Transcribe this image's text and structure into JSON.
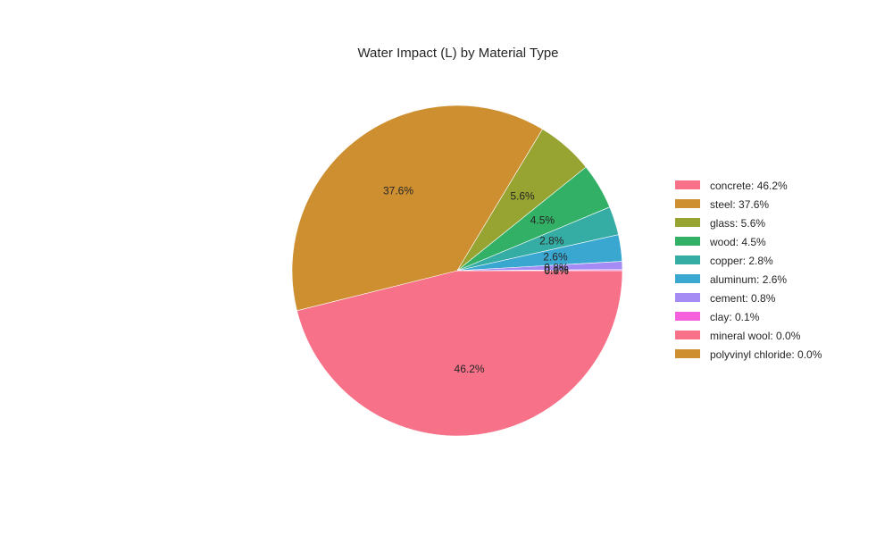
{
  "chart_data": {
    "type": "pie",
    "title": "Water Impact (L) by Material Type",
    "legend_position": "right",
    "start": "clockwise from horizontal right",
    "slices": [
      {
        "label": "concrete",
        "percent": 46.2,
        "legend": "concrete: 46.2%",
        "data_label": "46.2%",
        "color": "#f77189"
      },
      {
        "label": "steel",
        "percent": 37.6,
        "legend": "steel: 37.6%",
        "data_label": "37.6%",
        "color": "#ce8f31"
      },
      {
        "label": "glass",
        "percent": 5.6,
        "legend": "glass: 5.6%",
        "data_label": "5.6%",
        "color": "#97a431"
      },
      {
        "label": "wood",
        "percent": 4.5,
        "legend": "wood: 4.5%",
        "data_label": "4.5%",
        "color": "#32b166"
      },
      {
        "label": "copper",
        "percent": 2.8,
        "legend": "copper: 2.8%",
        "data_label": "2.8%",
        "color": "#36ada4"
      },
      {
        "label": "aluminum",
        "percent": 2.6,
        "legend": "aluminum: 2.6%",
        "data_label": "2.6%",
        "color": "#39a7d0"
      },
      {
        "label": "cement",
        "percent": 0.8,
        "legend": "cement: 0.8%",
        "data_label": "0.8%",
        "color": "#a48cf4"
      },
      {
        "label": "clay",
        "percent": 0.1,
        "legend": "clay: 0.1%",
        "data_label": "0.1%",
        "color": "#f561dd"
      },
      {
        "label": "mineral wool",
        "percent": 0.0,
        "legend": "mineral wool: 0.0%",
        "data_label": "0.0%",
        "color": "#f77189"
      },
      {
        "label": "polyvinyl chloride",
        "percent": 0.0,
        "legend": "polyvinyl chloride: 0.0%",
        "data_label": "0.0%",
        "color": "#ce8f31"
      }
    ]
  }
}
